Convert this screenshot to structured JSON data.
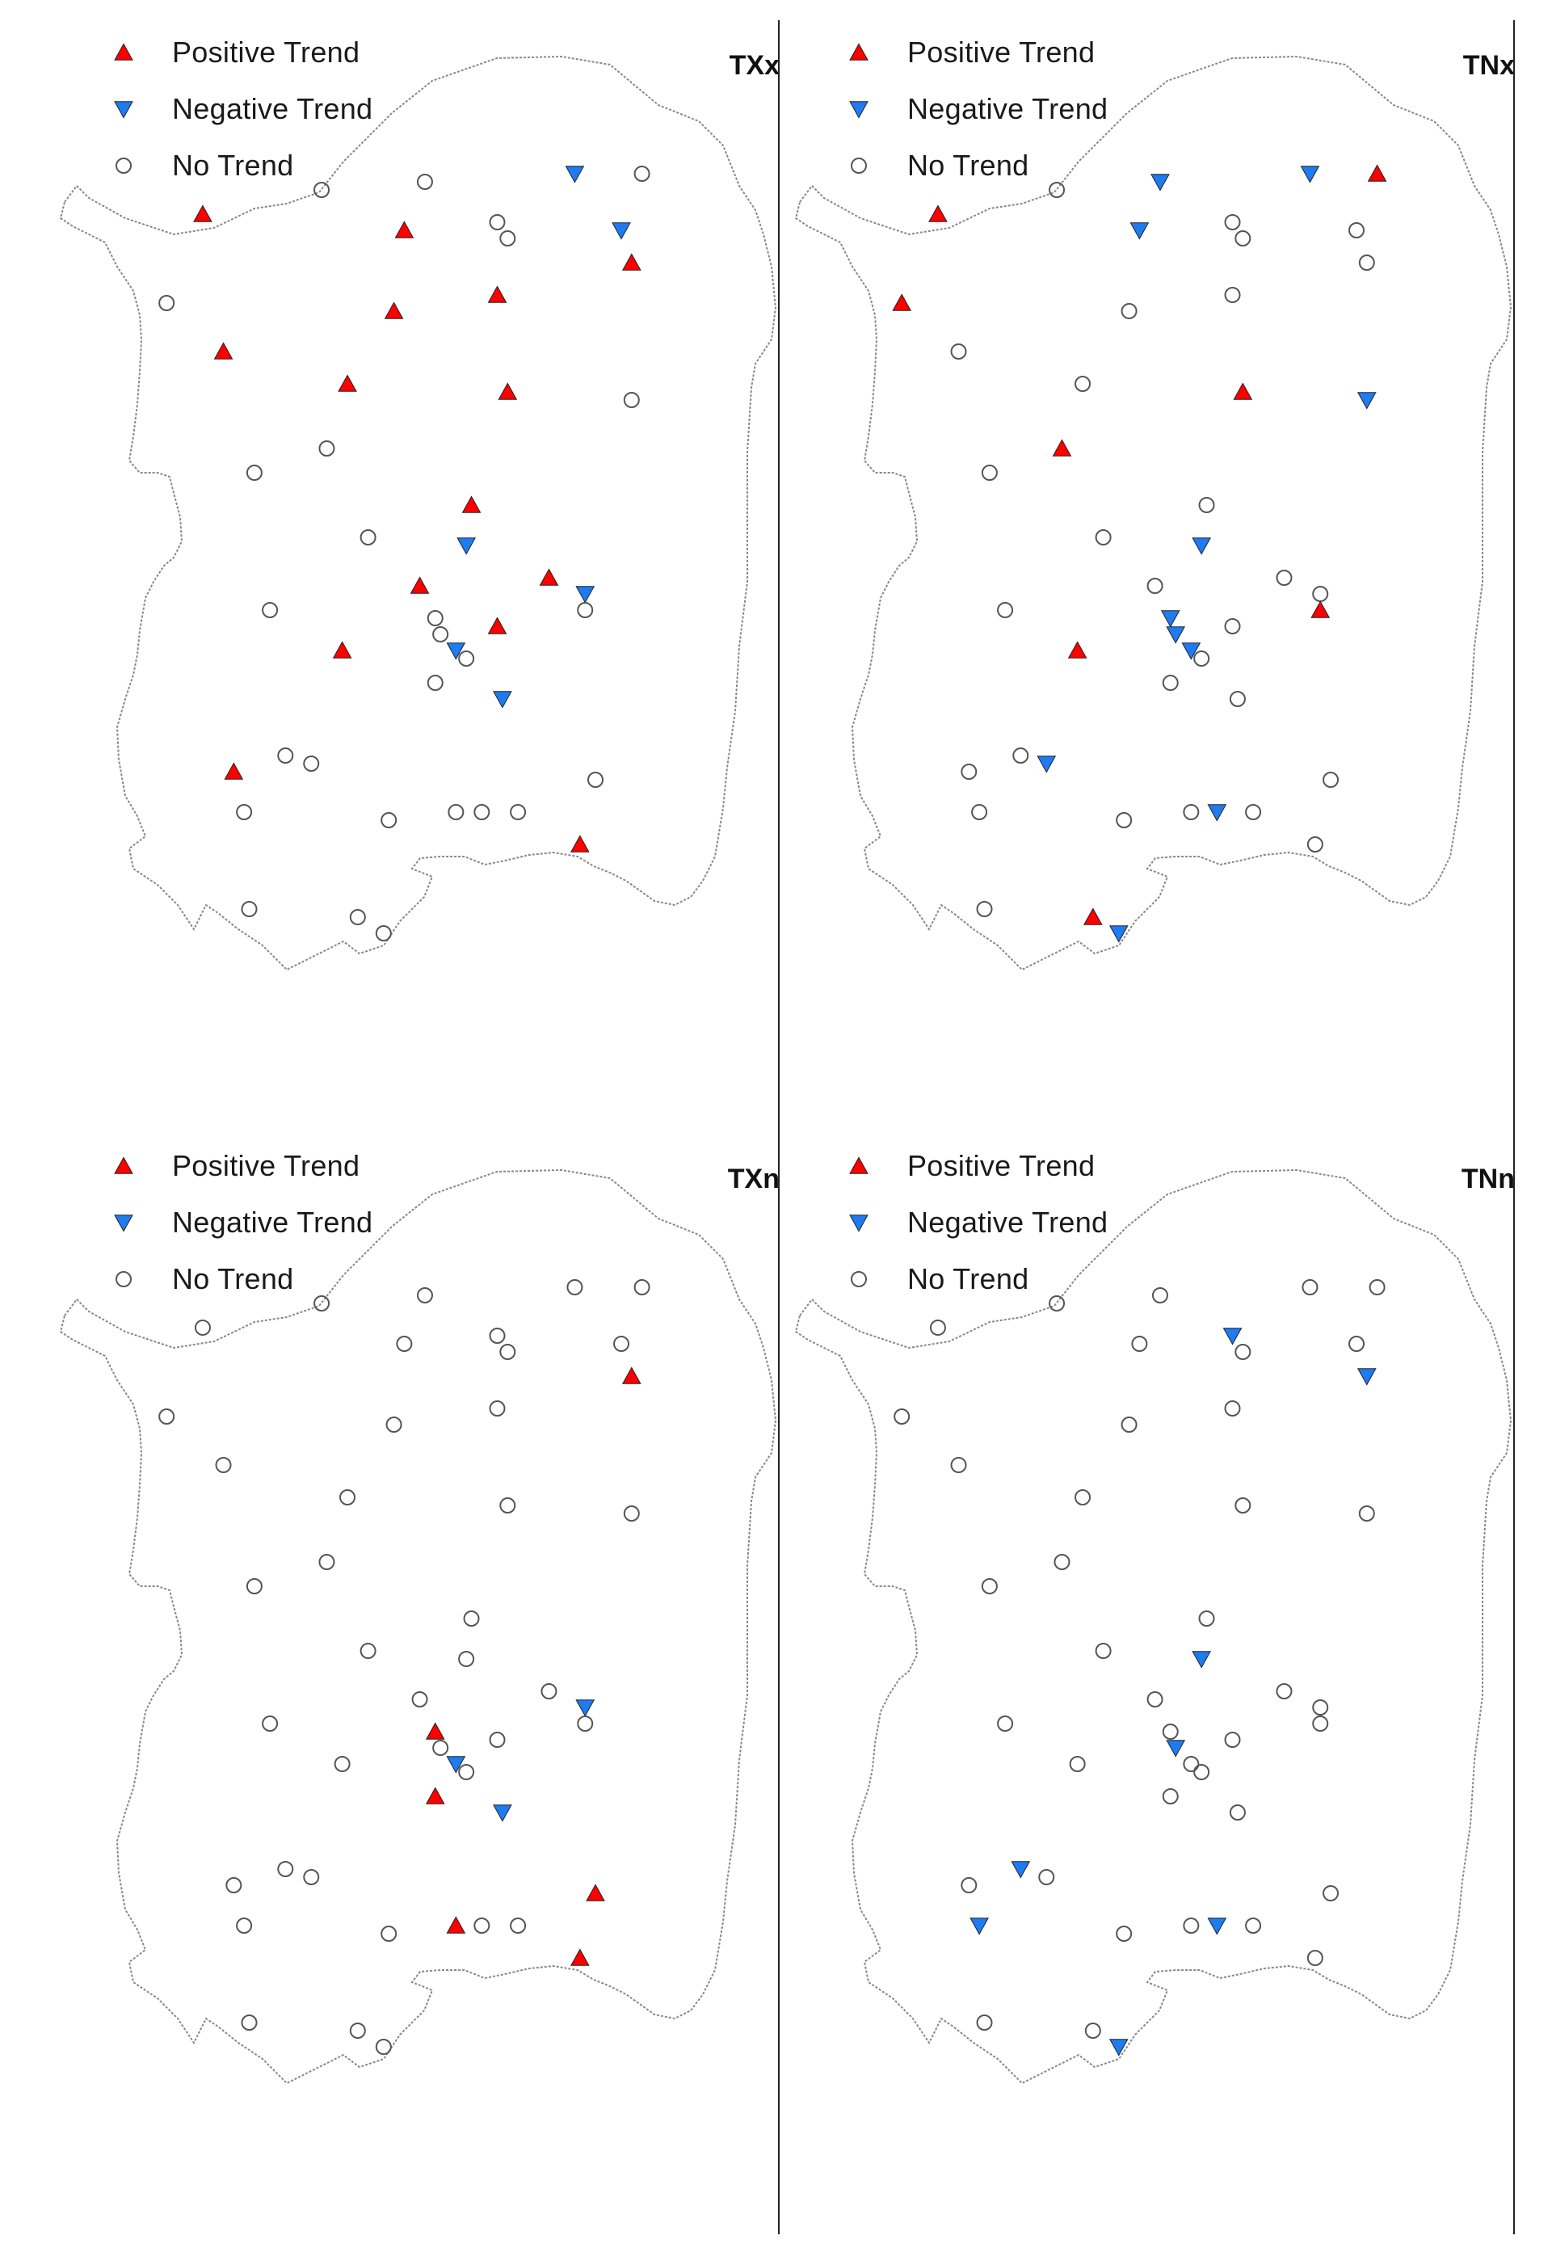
{
  "legend": {
    "positive": "Positive Trend",
    "negative": "Negative Trend",
    "none": "No Trend"
  },
  "colors": {
    "positive": "#ff0000",
    "negative": "#1e7bf0",
    "none_stroke": "#555555",
    "coast": "#888888"
  },
  "panels": [
    {
      "id": "txx",
      "title": "TXx",
      "stations": [
        [
          "n",
          1,
          0.12
        ],
        [
          "p",
          0.15,
          0.17
        ],
        [
          "n",
          0.38,
          0.14
        ],
        [
          "n",
          0.58,
          0.13
        ],
        [
          "ng",
          0.87,
          0.12
        ],
        [
          "p",
          0.54,
          0.19
        ],
        [
          "n",
          0.72,
          0.18
        ],
        [
          "n",
          0.74,
          0.2
        ],
        [
          "ng",
          0.96,
          0.19
        ],
        [
          "p",
          0.98,
          0.23
        ],
        [
          "n",
          0.08,
          0.28
        ],
        [
          "p",
          0.72,
          0.27
        ],
        [
          "p",
          0.52,
          0.29
        ],
        [
          "p",
          0.19,
          0.34
        ],
        [
          "p",
          0.43,
          0.38
        ],
        [
          "p",
          0.74,
          0.39
        ],
        [
          "n",
          0.98,
          0.4
        ],
        [
          "n",
          0.39,
          0.46
        ],
        [
          "n",
          0.25,
          0.49
        ],
        [
          "p",
          0.67,
          0.53
        ],
        [
          "ng",
          0.66,
          0.58
        ],
        [
          "n",
          0.47,
          0.57
        ],
        [
          "p",
          0.57,
          0.63
        ],
        [
          "p",
          0.82,
          0.62
        ],
        [
          "ng",
          0.89,
          0.64
        ],
        [
          "n",
          0.6,
          0.67
        ],
        [
          "n",
          0.89,
          0.66
        ],
        [
          "n",
          0.28,
          0.66
        ],
        [
          "p",
          0.72,
          0.68
        ],
        [
          "n",
          0.61,
          0.69
        ],
        [
          "ng",
          0.64,
          0.71
        ],
        [
          "n",
          0.66,
          0.72
        ],
        [
          "p",
          0.42,
          0.71
        ],
        [
          "n",
          0.6,
          0.75
        ],
        [
          "ng",
          0.73,
          0.77
        ],
        [
          "n",
          0.31,
          0.84
        ],
        [
          "n",
          0.36,
          0.85
        ],
        [
          "p",
          0.21,
          0.86
        ],
        [
          "n",
          0.23,
          0.91
        ],
        [
          "n",
          0.51,
          0.92
        ],
        [
          "n",
          0.64,
          0.91
        ],
        [
          "n",
          0.69,
          0.91
        ],
        [
          "n",
          0.76,
          0.91
        ],
        [
          "n",
          0.91,
          0.87
        ],
        [
          "p",
          0.88,
          0.95
        ],
        [
          "n",
          0.24,
          1.03
        ],
        [
          "n",
          0.45,
          1.04
        ],
        [
          "n",
          0.5,
          1.06
        ]
      ]
    },
    {
      "id": "tnx",
      "title": "TNx",
      "stations": [
        [
          "p",
          1,
          0.12
        ],
        [
          "p",
          0.15,
          0.17
        ],
        [
          "n",
          0.38,
          0.14
        ],
        [
          "ng",
          0.58,
          0.13
        ],
        [
          "ng",
          0.87,
          0.12
        ],
        [
          "ng",
          0.54,
          0.19
        ],
        [
          "n",
          0.72,
          0.18
        ],
        [
          "n",
          0.74,
          0.2
        ],
        [
          "n",
          0.96,
          0.19
        ],
        [
          "n",
          0.98,
          0.23
        ],
        [
          "p",
          0.08,
          0.28
        ],
        [
          "n",
          0.72,
          0.27
        ],
        [
          "n",
          0.52,
          0.29
        ],
        [
          "n",
          0.19,
          0.34
        ],
        [
          "n",
          0.43,
          0.38
        ],
        [
          "p",
          0.74,
          0.39
        ],
        [
          "ng",
          0.98,
          0.4
        ],
        [
          "p",
          0.39,
          0.46
        ],
        [
          "n",
          0.25,
          0.49
        ],
        [
          "n",
          0.67,
          0.53
        ],
        [
          "ng",
          0.66,
          0.58
        ],
        [
          "n",
          0.47,
          0.57
        ],
        [
          "n",
          0.57,
          0.63
        ],
        [
          "n",
          0.82,
          0.62
        ],
        [
          "n",
          0.89,
          0.64
        ],
        [
          "ng",
          0.6,
          0.67
        ],
        [
          "p",
          0.89,
          0.66
        ],
        [
          "n",
          0.28,
          0.66
        ],
        [
          "n",
          0.72,
          0.68
        ],
        [
          "ng",
          0.61,
          0.69
        ],
        [
          "ng",
          0.64,
          0.71
        ],
        [
          "n",
          0.66,
          0.72
        ],
        [
          "p",
          0.42,
          0.71
        ],
        [
          "n",
          0.6,
          0.75
        ],
        [
          "n",
          0.73,
          0.77
        ],
        [
          "n",
          0.31,
          0.84
        ],
        [
          "ng",
          0.36,
          0.85
        ],
        [
          "n",
          0.21,
          0.86
        ],
        [
          "n",
          0.23,
          0.91
        ],
        [
          "n",
          0.51,
          0.92
        ],
        [
          "n",
          0.64,
          0.91
        ],
        [
          "ng",
          0.69,
          0.91
        ],
        [
          "n",
          0.76,
          0.91
        ],
        [
          "n",
          0.91,
          0.87
        ],
        [
          "n",
          0.88,
          0.95
        ],
        [
          "n",
          0.24,
          1.03
        ],
        [
          "p",
          0.45,
          1.04
        ],
        [
          "ng",
          0.5,
          1.06
        ]
      ]
    },
    {
      "id": "txn",
      "title": "TXn",
      "stations": [
        [
          "n",
          1,
          0.12
        ],
        [
          "n",
          0.15,
          0.17
        ],
        [
          "n",
          0.38,
          0.14
        ],
        [
          "n",
          0.58,
          0.13
        ],
        [
          "n",
          0.87,
          0.12
        ],
        [
          "n",
          0.54,
          0.19
        ],
        [
          "n",
          0.72,
          0.18
        ],
        [
          "n",
          0.74,
          0.2
        ],
        [
          "n",
          0.96,
          0.19
        ],
        [
          "p",
          0.98,
          0.23
        ],
        [
          "n",
          0.08,
          0.28
        ],
        [
          "n",
          0.72,
          0.27
        ],
        [
          "n",
          0.52,
          0.29
        ],
        [
          "n",
          0.19,
          0.34
        ],
        [
          "n",
          0.43,
          0.38
        ],
        [
          "n",
          0.74,
          0.39
        ],
        [
          "n",
          0.98,
          0.4
        ],
        [
          "n",
          0.39,
          0.46
        ],
        [
          "n",
          0.25,
          0.49
        ],
        [
          "n",
          0.67,
          0.53
        ],
        [
          "n",
          0.66,
          0.58
        ],
        [
          "n",
          0.47,
          0.57
        ],
        [
          "n",
          0.57,
          0.63
        ],
        [
          "n",
          0.82,
          0.62
        ],
        [
          "ng",
          0.89,
          0.64
        ],
        [
          "p",
          0.6,
          0.67
        ],
        [
          "n",
          0.89,
          0.66
        ],
        [
          "n",
          0.28,
          0.66
        ],
        [
          "n",
          0.72,
          0.68
        ],
        [
          "n",
          0.61,
          0.69
        ],
        [
          "ng",
          0.64,
          0.71
        ],
        [
          "n",
          0.66,
          0.72
        ],
        [
          "n",
          0.42,
          0.71
        ],
        [
          "p",
          0.6,
          0.75
        ],
        [
          "ng",
          0.73,
          0.77
        ],
        [
          "n",
          0.31,
          0.84
        ],
        [
          "n",
          0.36,
          0.85
        ],
        [
          "n",
          0.21,
          0.86
        ],
        [
          "n",
          0.23,
          0.91
        ],
        [
          "n",
          0.51,
          0.92
        ],
        [
          "p",
          0.64,
          0.91
        ],
        [
          "n",
          0.69,
          0.91
        ],
        [
          "n",
          0.76,
          0.91
        ],
        [
          "p",
          0.91,
          0.87
        ],
        [
          "p",
          0.88,
          0.95
        ],
        [
          "n",
          0.24,
          1.03
        ],
        [
          "n",
          0.45,
          1.04
        ],
        [
          "n",
          0.5,
          1.06
        ]
      ]
    },
    {
      "id": "tnn",
      "title": "TNn",
      "stations": [
        [
          "n",
          1,
          0.12
        ],
        [
          "n",
          0.15,
          0.17
        ],
        [
          "n",
          0.38,
          0.14
        ],
        [
          "n",
          0.58,
          0.13
        ],
        [
          "n",
          0.87,
          0.12
        ],
        [
          "n",
          0.54,
          0.19
        ],
        [
          "ng",
          0.72,
          0.18
        ],
        [
          "n",
          0.74,
          0.2
        ],
        [
          "n",
          0.96,
          0.19
        ],
        [
          "ng",
          0.98,
          0.23
        ],
        [
          "n",
          0.08,
          0.28
        ],
        [
          "n",
          0.72,
          0.27
        ],
        [
          "n",
          0.52,
          0.29
        ],
        [
          "n",
          0.19,
          0.34
        ],
        [
          "n",
          0.43,
          0.38
        ],
        [
          "n",
          0.74,
          0.39
        ],
        [
          "n",
          0.98,
          0.4
        ],
        [
          "n",
          0.39,
          0.46
        ],
        [
          "n",
          0.25,
          0.49
        ],
        [
          "n",
          0.67,
          0.53
        ],
        [
          "ng",
          0.66,
          0.58
        ],
        [
          "n",
          0.47,
          0.57
        ],
        [
          "n",
          0.57,
          0.63
        ],
        [
          "n",
          0.82,
          0.62
        ],
        [
          "n",
          0.89,
          0.64
        ],
        [
          "n",
          0.6,
          0.67
        ],
        [
          "n",
          0.89,
          0.66
        ],
        [
          "n",
          0.28,
          0.66
        ],
        [
          "n",
          0.72,
          0.68
        ],
        [
          "ng",
          0.61,
          0.69
        ],
        [
          "n",
          0.64,
          0.71
        ],
        [
          "n",
          0.66,
          0.72
        ],
        [
          "n",
          0.42,
          0.71
        ],
        [
          "n",
          0.6,
          0.75
        ],
        [
          "n",
          0.73,
          0.77
        ],
        [
          "ng",
          0.31,
          0.84
        ],
        [
          "n",
          0.36,
          0.85
        ],
        [
          "n",
          0.21,
          0.86
        ],
        [
          "ng",
          0.23,
          0.91
        ],
        [
          "n",
          0.51,
          0.92
        ],
        [
          "n",
          0.64,
          0.91
        ],
        [
          "ng",
          0.69,
          0.91
        ],
        [
          "n",
          0.76,
          0.91
        ],
        [
          "n",
          0.91,
          0.87
        ],
        [
          "n",
          0.88,
          0.95
        ],
        [
          "n",
          0.24,
          1.03
        ],
        [
          "n",
          0.45,
          1.04
        ],
        [
          "ng",
          0.5,
          1.06
        ]
      ]
    }
  ]
}
